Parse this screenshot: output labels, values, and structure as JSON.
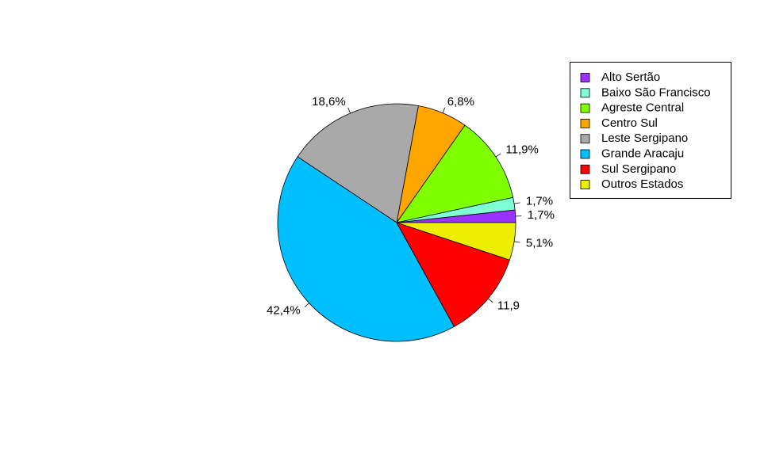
{
  "chart_data": {
    "type": "pie",
    "categories": [
      "Alto Sertão",
      "Baixo São Francisco",
      "Agreste Central",
      "Centro Sul",
      "Leste Sergipano",
      "Grande Aracaju",
      "Sul Sergipano",
      "Outros Estados"
    ],
    "values": [
      1.7,
      1.7,
      11.9,
      6.8,
      18.6,
      42.4,
      11.9,
      5.1
    ],
    "value_labels": [
      "1,7%",
      "1,7%",
      "11,9%",
      "6,8%",
      "18,6%",
      "42,4%",
      "11,9",
      "5,1%"
    ],
    "colors": [
      "#9b30ff",
      "#7fffd4",
      "#7fff00",
      "#ffa500",
      "#a9a9a9",
      "#00bfff",
      "#ff0000",
      "#eeee00"
    ],
    "legend": "topright"
  }
}
